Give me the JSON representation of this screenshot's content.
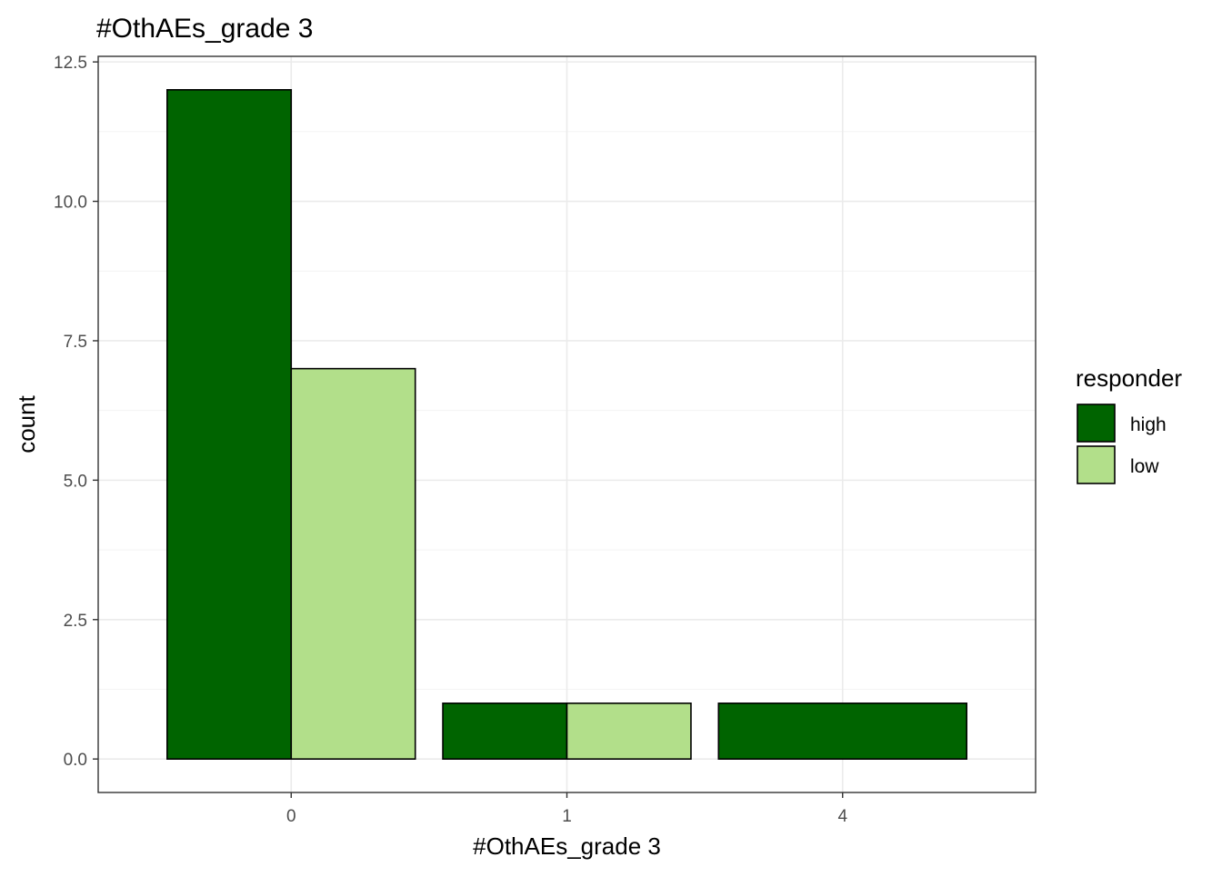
{
  "chart_data": {
    "type": "bar",
    "title": "#OthAEs_grade 3",
    "xlabel": "#OthAEs_grade 3",
    "ylabel": "count",
    "categories": [
      "0",
      "1",
      "4"
    ],
    "series": [
      {
        "name": "high",
        "color": "#006400",
        "values": [
          12,
          1,
          1
        ]
      },
      {
        "name": "low",
        "color": "#b2df8a",
        "values": [
          7,
          1,
          0
        ]
      }
    ],
    "position": "dodge",
    "ylim": [
      -0.6,
      12.6
    ],
    "yticks": [
      "0.0",
      "2.5",
      "5.0",
      "7.5",
      "10.0",
      "12.5"
    ],
    "grid": true,
    "legend": {
      "title": "responder",
      "placement": "right"
    }
  }
}
